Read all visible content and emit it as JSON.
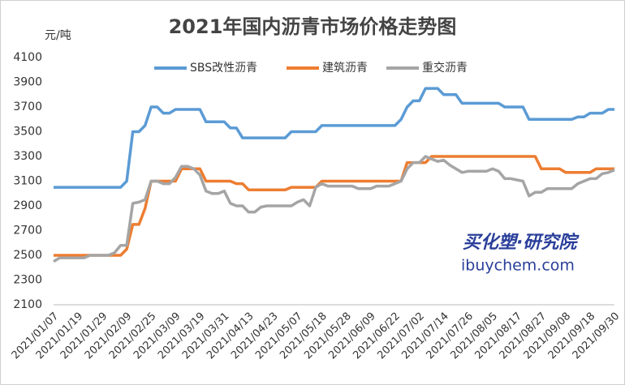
{
  "chart_data": {
    "type": "line",
    "title": "2021年国内沥青市场价格走势图",
    "y_axis_label": "元/吨",
    "annotations": [
      "买化塑·研究院",
      "ibuychem.com"
    ],
    "categories": [
      "2021/01/07",
      null,
      null,
      null,
      "2021/01/19",
      null,
      null,
      null,
      "2021/01/29",
      null,
      null,
      null,
      "2021/02/09",
      null,
      null,
      null,
      "2021/02/25",
      null,
      null,
      null,
      "2021/03/09",
      null,
      null,
      null,
      "2021/03/19",
      null,
      null,
      null,
      "2021/03/31",
      null,
      null,
      null,
      "2021/04/13",
      null,
      null,
      null,
      "2021/04/23",
      null,
      null,
      null,
      "2021/05/07",
      null,
      null,
      null,
      "2021/05/18",
      null,
      null,
      null,
      "2021/05/28",
      null,
      null,
      null,
      "2021/06/09",
      null,
      null,
      null,
      "2021/06/22",
      null,
      null,
      null,
      "2021/07/02",
      null,
      null,
      null,
      "2021/07/14",
      null,
      null,
      null,
      "2021/07/26",
      null,
      null,
      null,
      "2021/08/05",
      null,
      null,
      null,
      "2021/08/17",
      null,
      null,
      null,
      "2021/08/27",
      null,
      null,
      null,
      "2021/09/08",
      null,
      null,
      null,
      "2021/09/18",
      null,
      null,
      null,
      "2021/09/30"
    ],
    "series": [
      {
        "name": "SBS改性沥青",
        "color": "#5b9bd5",
        "values": [
          3050,
          3050,
          3050,
          3050,
          3050,
          3050,
          3050,
          3050,
          3050,
          3050,
          3050,
          3050,
          3100,
          3500,
          3500,
          3550,
          3700,
          3700,
          3650,
          3650,
          3680,
          3680,
          3680,
          3680,
          3680,
          3580,
          3580,
          3580,
          3580,
          3530,
          3530,
          3450,
          3450,
          3450,
          3450,
          3450,
          3450,
          3450,
          3450,
          3500,
          3500,
          3500,
          3500,
          3500,
          3550,
          3550,
          3550,
          3550,
          3550,
          3550,
          3550,
          3550,
          3550,
          3550,
          3550,
          3550,
          3550,
          3600,
          3700,
          3750,
          3750,
          3850,
          3850,
          3850,
          3800,
          3800,
          3800,
          3730,
          3730,
          3730,
          3730,
          3730,
          3730,
          3730,
          3700,
          3700,
          3700,
          3700,
          3600,
          3600,
          3600,
          3600,
          3600,
          3600,
          3600,
          3600,
          3620,
          3620,
          3650,
          3650,
          3650,
          3680,
          3680
        ]
      },
      {
        "name": "建筑沥青",
        "color": "#ed7d31",
        "values": [
          2500,
          2500,
          2500,
          2500,
          2500,
          2500,
          2500,
          2500,
          2500,
          2500,
          2500,
          2500,
          2550,
          2750,
          2750,
          2880,
          3100,
          3100,
          3100,
          3100,
          3100,
          3200,
          3200,
          3200,
          3200,
          3100,
          3100,
          3100,
          3100,
          3100,
          3080,
          3080,
          3030,
          3030,
          3030,
          3030,
          3030,
          3030,
          3030,
          3050,
          3050,
          3050,
          3050,
          3050,
          3100,
          3100,
          3100,
          3100,
          3100,
          3100,
          3100,
          3100,
          3100,
          3100,
          3100,
          3100,
          3100,
          3100,
          3250,
          3250,
          3250,
          3250,
          3300,
          3300,
          3300,
          3300,
          3300,
          3300,
          3300,
          3300,
          3300,
          3300,
          3300,
          3300,
          3300,
          3300,
          3300,
          3300,
          3300,
          3300,
          3200,
          3200,
          3200,
          3200,
          3170,
          3170,
          3170,
          3170,
          3170,
          3200,
          3200,
          3200,
          3200
        ]
      },
      {
        "name": "重交沥青",
        "color": "#a5a5a5",
        "values": [
          2450,
          2480,
          2480,
          2480,
          2480,
          2480,
          2500,
          2500,
          2500,
          2500,
          2520,
          2580,
          2580,
          2920,
          2930,
          2950,
          3100,
          3100,
          3080,
          3080,
          3130,
          3220,
          3220,
          3200,
          3150,
          3020,
          3000,
          3000,
          3020,
          2920,
          2900,
          2900,
          2850,
          2850,
          2890,
          2900,
          2900,
          2900,
          2900,
          2900,
          2930,
          2950,
          2900,
          3050,
          3080,
          3060,
          3060,
          3060,
          3060,
          3060,
          3040,
          3040,
          3040,
          3060,
          3060,
          3060,
          3080,
          3100,
          3200,
          3250,
          3250,
          3300,
          3280,
          3260,
          3270,
          3230,
          3200,
          3170,
          3180,
          3180,
          3180,
          3180,
          3200,
          3180,
          3120,
          3120,
          3110,
          3100,
          2980,
          3010,
          3010,
          3040,
          3040,
          3040,
          3040,
          3040,
          3080,
          3100,
          3120,
          3120,
          3160,
          3170,
          3190
        ]
      }
    ],
    "ylim": [
      2100,
      4100
    ],
    "yticks": [
      2100,
      2300,
      2500,
      2700,
      2900,
      3100,
      3300,
      3500,
      3700,
      3900,
      4100
    ],
    "grid": false,
    "legend": "top"
  }
}
